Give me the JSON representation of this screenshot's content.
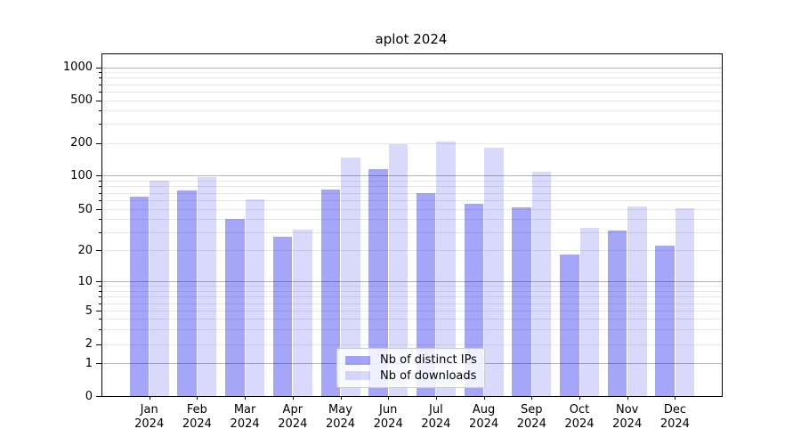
{
  "figure": {
    "title": "aplot 2024"
  },
  "legend": {
    "items": [
      {
        "label": "Nb of distinct IPs"
      },
      {
        "label": "Nb of downloads"
      }
    ]
  },
  "colors": {
    "bar_distinct_ips": "rgba(0,0,238,0.35)",
    "bar_downloads": "rgba(0,0,238,0.15)",
    "grid_major": "#b3b3b3",
    "grid_minor": "#e8e8e8",
    "axis": "#000000",
    "legend_border": "#cccccc"
  },
  "chart_data": {
    "type": "bar",
    "title": "aplot 2024",
    "categories": [
      "Jan 2024",
      "Feb 2024",
      "Mar 2024",
      "Apr 2024",
      "May 2024",
      "Jun 2024",
      "Jul 2024",
      "Aug 2024",
      "Sep 2024",
      "Oct 2024",
      "Nov 2024",
      "Dec 2024"
    ],
    "series": [
      {
        "name": "Nb of distinct IPs",
        "fill": "rgba(0,0,238,0.35)",
        "values": [
          65,
          74,
          40,
          27,
          75,
          115,
          70,
          56,
          52,
          18,
          31,
          22
        ]
      },
      {
        "name": "Nb of downloads",
        "fill": "rgba(0,0,238,0.15)",
        "values": [
          90,
          97,
          61,
          32,
          146,
          195,
          205,
          180,
          108,
          33,
          53,
          51
        ]
      }
    ],
    "xlabel": "",
    "ylabel": "",
    "y_axis": {
      "scale": "asinh-log",
      "ticks": [
        0,
        1,
        2,
        5,
        10,
        20,
        50,
        100,
        200,
        500,
        1000
      ],
      "major_grid_values": [
        1,
        10,
        100,
        1000
      ],
      "ylim": [
        0,
        1300
      ],
      "grid": "both"
    },
    "legend_position": "inside lower-center",
    "bar_arrangement": "grouped side-by-side, 2 per month"
  }
}
